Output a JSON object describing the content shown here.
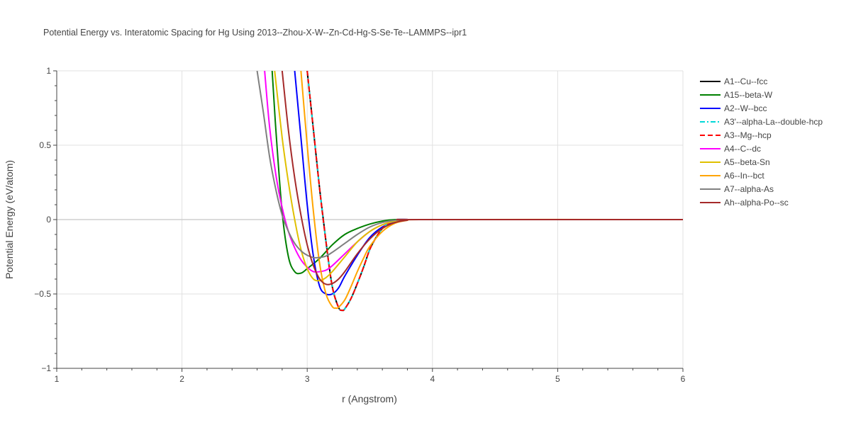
{
  "chart_data": {
    "type": "line",
    "title": "Potential Energy vs. Interatomic Spacing for Hg Using 2013--Zhou-X-W--Zn-Cd-Hg-S-Se-Te--LAMMPS--ipr1",
    "xlabel": "r (Angstrom)",
    "ylabel": "Potential Energy (eV/atom)",
    "xlim": [
      1,
      6
    ],
    "ylim": [
      -1,
      1
    ],
    "xticks": [
      1,
      2,
      3,
      4,
      5,
      6
    ],
    "xtick_labels": [
      "1",
      "2",
      "3",
      "4",
      "5",
      "6"
    ],
    "yticks": [
      -1,
      -0.5,
      0,
      0.5,
      1
    ],
    "ytick_labels": [
      "−1",
      "−0.5",
      "0",
      "0.5",
      "1"
    ],
    "grid": true,
    "legend_position": "right",
    "series": [
      {
        "name": "A1--Cu--fcc",
        "color": "#000000",
        "dash": "solid",
        "x": [
          3.0,
          3.05,
          3.1,
          3.15,
          3.2,
          3.25,
          3.28,
          3.3,
          3.35,
          3.4,
          3.45,
          3.5,
          3.55,
          3.6,
          3.65,
          3.7,
          3.75,
          3.8,
          3.9,
          4.0,
          6.0
        ],
        "y": [
          1.0,
          0.6,
          0.2,
          -0.15,
          -0.45,
          -0.59,
          -0.61,
          -0.6,
          -0.53,
          -0.43,
          -0.32,
          -0.2,
          -0.12,
          -0.06,
          -0.025,
          -0.01,
          -0.003,
          0.0,
          0.0,
          0.0,
          0.0
        ]
      },
      {
        "name": "A15--beta-W",
        "color": "#008000",
        "dash": "solid",
        "x": [
          2.72,
          2.75,
          2.8,
          2.85,
          2.9,
          2.95,
          3.0,
          3.1,
          3.2,
          3.3,
          3.4,
          3.5,
          3.6,
          3.7,
          3.8,
          3.9,
          6.0
        ],
        "y": [
          1.0,
          0.6,
          0.05,
          -0.25,
          -0.35,
          -0.36,
          -0.33,
          -0.26,
          -0.17,
          -0.1,
          -0.06,
          -0.03,
          -0.01,
          0.0,
          0.0,
          0.0,
          0.0
        ]
      },
      {
        "name": "A2--W--bcc",
        "color": "#0000ff",
        "dash": "solid",
        "x": [
          2.9,
          2.95,
          3.0,
          3.05,
          3.1,
          3.15,
          3.2,
          3.25,
          3.3,
          3.4,
          3.5,
          3.6,
          3.7,
          3.8,
          3.9,
          6.0
        ],
        "y": [
          1.0,
          0.55,
          0.1,
          -0.25,
          -0.45,
          -0.5,
          -0.5,
          -0.46,
          -0.38,
          -0.24,
          -0.12,
          -0.05,
          -0.015,
          0.0,
          0.0,
          0.0
        ]
      },
      {
        "name": "A3'--alpha-La--double-hcp",
        "color": "#00d8d8",
        "dash": "dashdot",
        "x": [
          3.0,
          3.05,
          3.1,
          3.15,
          3.2,
          3.25,
          3.28,
          3.3,
          3.35,
          3.4,
          3.45,
          3.5,
          3.55,
          3.6,
          3.65,
          3.7,
          3.75,
          3.8,
          3.9,
          4.0,
          6.0
        ],
        "y": [
          1.0,
          0.6,
          0.2,
          -0.15,
          -0.45,
          -0.59,
          -0.61,
          -0.6,
          -0.53,
          -0.43,
          -0.32,
          -0.2,
          -0.12,
          -0.06,
          -0.025,
          -0.01,
          -0.003,
          0.0,
          0.0,
          0.0,
          0.0
        ]
      },
      {
        "name": "A3--Mg--hcp",
        "color": "#ff0000",
        "dash": "dash",
        "x": [
          3.0,
          3.05,
          3.1,
          3.15,
          3.2,
          3.25,
          3.28,
          3.3,
          3.35,
          3.4,
          3.45,
          3.5,
          3.55,
          3.6,
          3.65,
          3.7,
          3.75,
          3.8,
          3.9,
          4.0,
          6.0
        ],
        "y": [
          1.0,
          0.6,
          0.2,
          -0.15,
          -0.45,
          -0.59,
          -0.61,
          -0.6,
          -0.53,
          -0.43,
          -0.32,
          -0.2,
          -0.12,
          -0.06,
          -0.025,
          -0.01,
          -0.003,
          0.0,
          0.0,
          0.0,
          0.0
        ]
      },
      {
        "name": "A4--C--dc",
        "color": "#ff00ff",
        "dash": "solid",
        "x": [
          2.66,
          2.7,
          2.75,
          2.8,
          2.85,
          2.9,
          2.95,
          3.0,
          3.05,
          3.1,
          3.15,
          3.2,
          3.3,
          3.4,
          3.5,
          3.6,
          3.7,
          3.8,
          3.9,
          6.0
        ],
        "y": [
          1.0,
          0.62,
          0.3,
          0.08,
          -0.08,
          -0.19,
          -0.27,
          -0.32,
          -0.35,
          -0.35,
          -0.34,
          -0.31,
          -0.23,
          -0.15,
          -0.08,
          -0.035,
          -0.01,
          0.0,
          0.0,
          0.0
        ]
      },
      {
        "name": "A5--beta-Sn",
        "color": "#e0c000",
        "dash": "solid",
        "x": [
          2.74,
          2.8,
          2.85,
          2.9,
          2.95,
          3.0,
          3.05,
          3.1,
          3.15,
          3.2,
          3.3,
          3.4,
          3.5,
          3.6,
          3.7,
          3.8,
          3.9,
          6.0
        ],
        "y": [
          1.0,
          0.55,
          0.25,
          0.0,
          -0.2,
          -0.33,
          -0.4,
          -0.41,
          -0.39,
          -0.35,
          -0.25,
          -0.15,
          -0.08,
          -0.035,
          -0.01,
          0.0,
          0.0,
          0.0
        ]
      },
      {
        "name": "A6--In--bct",
        "color": "#ffa500",
        "dash": "solid",
        "x": [
          2.95,
          3.0,
          3.05,
          3.1,
          3.15,
          3.2,
          3.23,
          3.25,
          3.3,
          3.35,
          3.4,
          3.45,
          3.5,
          3.6,
          3.7,
          3.8,
          3.9,
          6.0
        ],
        "y": [
          1.0,
          0.5,
          0.05,
          -0.3,
          -0.5,
          -0.585,
          -0.595,
          -0.59,
          -0.54,
          -0.45,
          -0.35,
          -0.26,
          -0.18,
          -0.08,
          -0.025,
          -0.005,
          0.0,
          0.0
        ]
      },
      {
        "name": "A7--alpha-As",
        "color": "#808080",
        "dash": "solid",
        "x": [
          2.6,
          2.65,
          2.7,
          2.75,
          2.8,
          2.85,
          2.9,
          2.95,
          3.0,
          3.05,
          3.1,
          3.15,
          3.2,
          3.3,
          3.4,
          3.5,
          3.6,
          3.7,
          3.8,
          3.9,
          6.0
        ],
        "y": [
          1.0,
          0.72,
          0.42,
          0.2,
          0.03,
          -0.08,
          -0.16,
          -0.21,
          -0.24,
          -0.255,
          -0.255,
          -0.245,
          -0.22,
          -0.16,
          -0.1,
          -0.05,
          -0.02,
          -0.005,
          0.0,
          0.0,
          0.0
        ]
      },
      {
        "name": "Ah--alpha-Po--sc",
        "color": "#a52a2a",
        "dash": "solid",
        "x": [
          2.8,
          2.85,
          2.9,
          2.95,
          3.0,
          3.05,
          3.1,
          3.15,
          3.2,
          3.25,
          3.3,
          3.4,
          3.5,
          3.6,
          3.7,
          3.8,
          3.9,
          6.0
        ],
        "y": [
          1.0,
          0.6,
          0.28,
          0.03,
          -0.17,
          -0.31,
          -0.4,
          -0.435,
          -0.43,
          -0.4,
          -0.35,
          -0.23,
          -0.13,
          -0.06,
          -0.02,
          -0.004,
          0.0,
          0.0
        ]
      }
    ]
  }
}
